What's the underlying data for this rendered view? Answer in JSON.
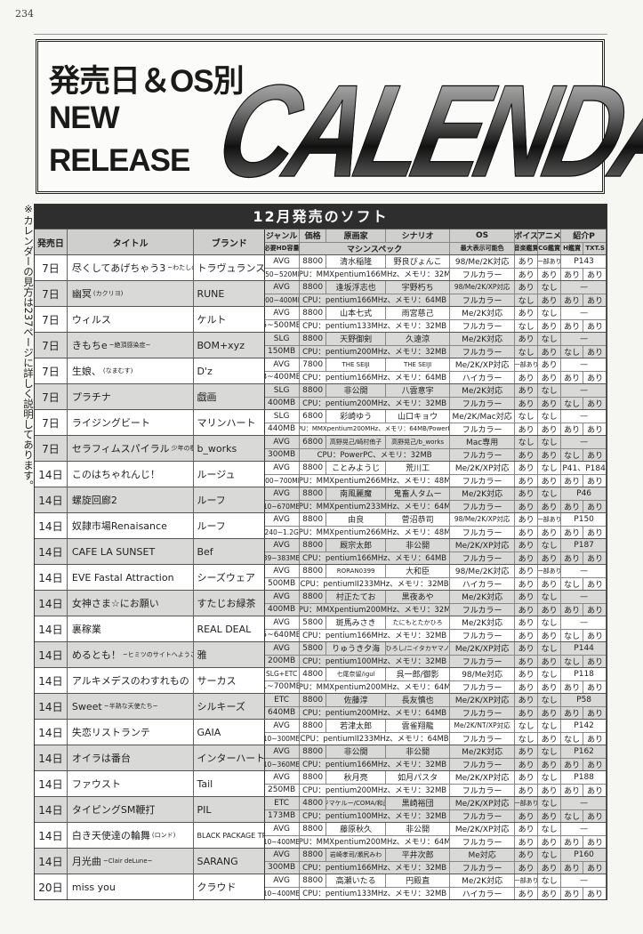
{
  "page_number": "234",
  "header": {
    "line1": "発売日＆OS別",
    "line2": "NEW",
    "line3": "RELEASE",
    "logo": "CALENDAR"
  },
  "side_note": "※カレンダーの見方は237ページに詳しく説明してあります。",
  "table": {
    "title": "12月発売のソフト",
    "headers": {
      "date": "発売日",
      "title": "タイトル",
      "brand": "ブランド",
      "genre": "ジャンル",
      "price": "価格",
      "artist": "原画家",
      "scenario": "シナリオ",
      "os": "OS",
      "voice": "ボイス",
      "anime": "アニメ",
      "intro": "紹介P",
      "hd": "必要HD容量",
      "spec": "マシンスペック",
      "colors": "最大表示可能色",
      "music": "音楽鑑賞",
      "cg": "CG鑑賞",
      "h": "H鑑賞",
      "txt": "TXT.S"
    },
    "rows": [
      {
        "date": "7日",
        "title": "尽くしてあげちゃう3",
        "subtitle": "~わたしのご主人様~",
        "brand": "トラヴュランス",
        "genre": "AVG",
        "price": "8800",
        "artist": "清水稲隆",
        "scenario": "野良ぴょんこ",
        "os": "98/Me/2K対応",
        "voice": "あり",
        "anime": "一部あり",
        "intro": "P143",
        "hd": "350~520MB",
        "spec": "CPU：MMXpentium166MHz、メモリ：32MB",
        "colors": "フルカラー",
        "music": "あり",
        "cg": "あり",
        "h": "あり",
        "txt": "あり"
      },
      {
        "date": "7日",
        "title": "幽冥",
        "subtitle": "(カクリヨ)",
        "brand": "RUNE",
        "genre": "AVG",
        "price": "8800",
        "artist": "逢坂浮志也",
        "scenario": "宇野朽ち",
        "os": "98/Me/2K/XP対応",
        "voice": "あり",
        "anime": "なし",
        "intro": "—",
        "hd": "200~400MB",
        "spec": "CPU：pentium166MHz、メモリ：64MB",
        "colors": "フルカラー",
        "music": "なし",
        "cg": "あり",
        "h": "あり",
        "txt": "あり"
      },
      {
        "date": "7日",
        "title": "ウィルス",
        "subtitle": "",
        "brand": "ケルト",
        "genre": "AVG",
        "price": "8800",
        "artist": "山本七式",
        "scenario": "雨宮慈己",
        "os": "Me/2K対応",
        "voice": "あり",
        "anime": "なし",
        "intro": "—",
        "hd": "5~500MB",
        "spec": "CPU：pentium133MHz、メモリ：32MB",
        "colors": "フルカラー",
        "music": "なし",
        "cg": "あり",
        "h": "あり",
        "txt": "あり"
      },
      {
        "date": "7日",
        "title": "きもちe",
        "subtitle": "~絶頂感染症~",
        "brand": "BOM+xyz",
        "genre": "SLG",
        "price": "8800",
        "artist": "天野御剣",
        "scenario": "久遠涼",
        "os": "Me/2K対応",
        "voice": "あり",
        "anime": "なし",
        "intro": "—",
        "hd": "150MB",
        "spec": "CPU：pentium200MHz、メモリ：32MB",
        "colors": "フルカラー",
        "music": "なし",
        "cg": "あり",
        "h": "なし",
        "txt": "あり"
      },
      {
        "date": "7日",
        "title": "生娘、",
        "subtitle": "(なまむす)",
        "brand": "D'z",
        "genre": "AVG",
        "price": "7800",
        "artist": "THE SEIJI",
        "scenario": "THE SEIJI",
        "os": "Me/2K/XP対応",
        "voice": "一部あり",
        "anime": "あり",
        "intro": "—",
        "hd": "3~400MB",
        "spec": "CPU：pentium166MHz、メモリ：64MB",
        "colors": "ハイカラー",
        "music": "あり",
        "cg": "あり",
        "h": "あり",
        "txt": "あり"
      },
      {
        "date": "7日",
        "title": "プラチナ",
        "subtitle": "",
        "brand": "戯画",
        "genre": "SLG",
        "price": "8800",
        "artist": "非公開",
        "scenario": "八雲意宇",
        "os": "Me/2K対応",
        "voice": "あり",
        "anime": "なし",
        "intro": "—",
        "hd": "400MB",
        "spec": "CPU：pentium200MHz、メモリ：32MB",
        "colors": "フルカラー",
        "music": "あり",
        "cg": "あり",
        "h": "なし",
        "txt": "あり"
      },
      {
        "date": "7日",
        "title": "ライジングビート",
        "subtitle": "",
        "brand": "マリンハート",
        "genre": "SLG",
        "price": "6800",
        "artist": "彩崎ゆう",
        "scenario": "山口キョウ",
        "os": "Me/2K/Mac対応",
        "voice": "なし",
        "anime": "なし",
        "intro": "—",
        "hd": "440MB",
        "spec": "CPU：MMXpentium200MHz、メモリ：64MB/PowerPC",
        "colors": "フルカラー",
        "music": "あり",
        "cg": "あり",
        "h": "あり",
        "txt": "あり"
      },
      {
        "date": "7日",
        "title": "セラフィムスパイラル",
        "subtitle": "少年の檻 (Mac版) (一般)",
        "brand": "b_works",
        "genre": "AVG",
        "price": "6800",
        "artist": "高野晃己/崎村侑子",
        "scenario": "高野晃己/b_works",
        "os": "Mac専用",
        "voice": "なし",
        "anime": "なし",
        "intro": "—",
        "hd": "300MB",
        "spec": "CPU：PowerPC、メモリ：32MB",
        "colors": "フルカラー",
        "music": "あり",
        "cg": "あり",
        "h": "なし",
        "txt": "あり"
      },
      {
        "date": "14日",
        "title": "このはちゃれんじ！",
        "subtitle": "",
        "brand": "ルージュ",
        "genre": "AVG",
        "price": "8800",
        "artist": "ことみようじ",
        "scenario": "荒川工",
        "os": "Me/2K/XP対応",
        "voice": "あり",
        "anime": "なし",
        "intro": "P41、P184",
        "hd": "200~700MB",
        "spec": "CPU：MMXpentium266MHz、メモリ：48MB",
        "colors": "フルカラー",
        "music": "あり",
        "cg": "あり",
        "h": "あり",
        "txt": "あり"
      },
      {
        "date": "14日",
        "title": "螺旋回廊2",
        "subtitle": "",
        "brand": "ルーフ",
        "genre": "AVG",
        "price": "8800",
        "artist": "南風麗魔",
        "scenario": "鬼畜人タムー",
        "os": "Me/2K対応",
        "voice": "あり",
        "anime": "なし",
        "intro": "P46",
        "hd": "10~670MB",
        "spec": "CPU：MMXpentium233MHz、メモリ：64MB",
        "colors": "フルカラー",
        "music": "あり",
        "cg": "あり",
        "h": "あり",
        "txt": "あり"
      },
      {
        "date": "14日",
        "title": "奴隷市場Renaisance",
        "subtitle": "",
        "brand": "ルーフ",
        "genre": "AVG",
        "price": "8800",
        "artist": "由良",
        "scenario": "菅沼恭司",
        "os": "98/Me/2K/XP対応",
        "voice": "あり",
        "anime": "一部あり",
        "intro": "P150",
        "hd": "240~1.2G",
        "spec": "CPU：MMXpentium266MHz、メモリ：48MB",
        "colors": "フルカラー",
        "music": "あり",
        "cg": "あり",
        "h": "あり",
        "txt": "あり"
      },
      {
        "date": "14日",
        "title": "CAFE LA SUNSET",
        "subtitle": "",
        "brand": "Bef",
        "genre": "AVG",
        "price": "8800",
        "artist": "厩宗太郎",
        "scenario": "非公開",
        "os": "Me/2K/XP対応",
        "voice": "あり",
        "anime": "なし",
        "intro": "P187",
        "hd": "39~383MB",
        "spec": "CPU：pentium166MHz、メモリ：64MB",
        "colors": "フルカラー",
        "music": "あり",
        "cg": "あり",
        "h": "あり",
        "txt": "あり"
      },
      {
        "date": "14日",
        "title": "EVE Fastal Attraction",
        "subtitle": "",
        "brand": "シーズウェア",
        "genre": "AVG",
        "price": "8800",
        "artist": "RORAN0399",
        "scenario": "大和臣",
        "os": "98/Me/2K対応",
        "voice": "あり",
        "anime": "一部あり",
        "intro": "—",
        "hd": "500MB",
        "spec": "CPU：pentiumII233MHz、メモリ：32MB",
        "colors": "ハイカラー",
        "music": "あり",
        "cg": "あり",
        "h": "なし",
        "txt": "あり"
      },
      {
        "date": "14日",
        "title": "女神さま☆にお願い",
        "subtitle": "",
        "brand": "すたじお緑茶",
        "genre": "AVG",
        "price": "8800",
        "artist": "村正たてお",
        "scenario": "黒夜あや",
        "os": "Me/2K対応",
        "voice": "あり",
        "anime": "なし",
        "intro": "—",
        "hd": "400MB",
        "spec": "CPU：MMXpentium200MHz、メモリ：32MB",
        "colors": "フルカラー",
        "music": "あり",
        "cg": "あり",
        "h": "あり",
        "txt": "あり"
      },
      {
        "date": "14日",
        "title": "裏稼業",
        "subtitle": "",
        "brand": "REAL DEAL",
        "genre": "AVG",
        "price": "5800",
        "artist": "斑馬みさき",
        "scenario": "たにもとたかひろ",
        "os": "Me/2K対応",
        "voice": "あり",
        "anime": "なし",
        "intro": "—",
        "hd": "5~640MB",
        "spec": "CPU：pentium166MHz、メモリ：32MB",
        "colors": "フルカラー",
        "music": "あり",
        "cg": "あり",
        "h": "なし",
        "txt": "あり"
      },
      {
        "date": "14日",
        "title": "めるとも！",
        "subtitle": "~ヒミツのサイトへようこそ~",
        "brand": "雅",
        "genre": "AVG",
        "price": "5800",
        "artist": "りゅうき夕海",
        "scenario": "小松ひろし/ニイタカヤマノボル",
        "os": "Me/2K/XP対応",
        "voice": "あり",
        "anime": "なし",
        "intro": "P144",
        "hd": "200MB",
        "spec": "CPU：pentium100MHz、メモリ：32MB",
        "colors": "フルカラー",
        "music": "あり",
        "cg": "あり",
        "h": "なし",
        "txt": "あり"
      },
      {
        "date": "14日",
        "title": "アルキメデスのわすれもの",
        "subtitle": "",
        "brand": "サーカス",
        "genre": "SLG+ETC",
        "price": "4800",
        "artist": "七尾奈留/igul",
        "scenario": "呉一郎/御影",
        "os": "98/Me対応",
        "voice": "あり",
        "anime": "なし",
        "intro": "P118",
        "hd": "1~700MB",
        "spec": "CPU：MMXpentium200MHz、メモリ：64MB",
        "colors": "フルカラー",
        "music": "あり",
        "cg": "あり",
        "h": "あり",
        "txt": "あり"
      },
      {
        "date": "14日",
        "title": "Sweet",
        "subtitle": "~半熟な天使たち~",
        "brand": "シルキーズ",
        "genre": "ETC",
        "price": "8800",
        "artist": "佐藤淳",
        "scenario": "長友慎也",
        "os": "Me/2K/XP対応",
        "voice": "あり",
        "anime": "なし",
        "intro": "P58",
        "hd": "640MB",
        "spec": "CPU：pentium200MHz、メモリ：64MB",
        "colors": "フルカラー",
        "music": "あり",
        "cg": "あり",
        "h": "あり",
        "txt": "あり"
      },
      {
        "date": "14日",
        "title": "失恋リストランテ",
        "subtitle": "",
        "brand": "GAIA",
        "genre": "AVG",
        "price": "8800",
        "artist": "若津太郎",
        "scenario": "雲雀翔龍",
        "os": "Me/2K/NT/XP対応",
        "voice": "なし",
        "anime": "なし",
        "intro": "P142",
        "hd": "10~300MB",
        "spec": "CPU：pentiumII233MHz、メモリ：64MB",
        "colors": "フルカラー",
        "music": "なし",
        "cg": "あり",
        "h": "なし",
        "txt": "あり"
      },
      {
        "date": "14日",
        "title": "オイラは番台",
        "subtitle": "",
        "brand": "インターハート",
        "genre": "AVG",
        "price": "8800",
        "artist": "非公開",
        "scenario": "非公開",
        "os": "Me/2K対応",
        "voice": "あり",
        "anime": "なし",
        "intro": "P162",
        "hd": "10~360MB",
        "spec": "CPU：pentium166MHz、メモリ：32MB",
        "colors": "フルカラー",
        "music": "あり",
        "cg": "あり",
        "h": "あり",
        "txt": "あり"
      },
      {
        "date": "14日",
        "title": "ファウスト",
        "subtitle": "",
        "brand": "Tail",
        "genre": "AVG",
        "price": "8800",
        "artist": "秋月亮",
        "scenario": "如月パスタ",
        "os": "Me/2K/XP対応",
        "voice": "あり",
        "anime": "なし",
        "intro": "P188",
        "hd": "250MB",
        "spec": "CPU：pentium200MHz、メモリ：32MB",
        "colors": "フルカラー",
        "music": "あり",
        "cg": "あり",
        "h": "あり",
        "txt": "あり"
      },
      {
        "date": "14日",
        "title": "タイピングSM鞭打",
        "subtitle": "",
        "brand": "PIL",
        "genre": "ETC",
        "price": "4800",
        "artist": "キジマケルー/COMA/和武蔵",
        "scenario": "黒崎裕団",
        "os": "Me/2K/XP対応",
        "voice": "一部あり",
        "anime": "なし",
        "intro": "—",
        "hd": "173MB",
        "spec": "CPU：pentium100MHz、メモリ：32MB",
        "colors": "フルカラー",
        "music": "あり",
        "cg": "あり",
        "h": "なし",
        "txt": "あり"
      },
      {
        "date": "14日",
        "title": "白き天使達の輪舞",
        "subtitle": "(ロンド)",
        "brand": "BLACK PACKAGE TRY",
        "genre": "AVG",
        "price": "8800",
        "artist": "藤原秋久",
        "scenario": "非公開",
        "os": "Me/2K/XP対応",
        "voice": "あり",
        "anime": "なし",
        "intro": "—",
        "hd": "10~400MB",
        "spec": "CPU：MMXpentium200MHz、メモリ：64MB",
        "colors": "フルカラー",
        "music": "あり",
        "cg": "あり",
        "h": "あり",
        "txt": "あり"
      },
      {
        "date": "14日",
        "title": "月光曲",
        "subtitle": "~Clair deLune~",
        "brand": "SARANG",
        "genre": "AVG",
        "price": "8800",
        "artist": "岩崎孝司/瀬尻みわ",
        "scenario": "平井次郎",
        "os": "Me対応",
        "voice": "あり",
        "anime": "なし",
        "intro": "P160",
        "hd": "300MB",
        "spec": "CPU：pentium166MHz、メモリ：32MB",
        "colors": "フルカラー",
        "music": "あり",
        "cg": "あり",
        "h": "あり",
        "txt": "あり"
      },
      {
        "date": "20日",
        "title": "miss you",
        "subtitle": "",
        "brand": "クラウド",
        "genre": "AVG",
        "price": "8800",
        "artist": "高瀬いたる",
        "scenario": "円殿直",
        "os": "Me/2K対応",
        "voice": "一部あり",
        "anime": "なし",
        "intro": "—",
        "hd": "10~400MB",
        "spec": "CPU：pentium133MHz、メモリ：32MB",
        "colors": "ハイカラー",
        "music": "あり",
        "cg": "あり",
        "h": "あり",
        "txt": "あり"
      }
    ]
  }
}
